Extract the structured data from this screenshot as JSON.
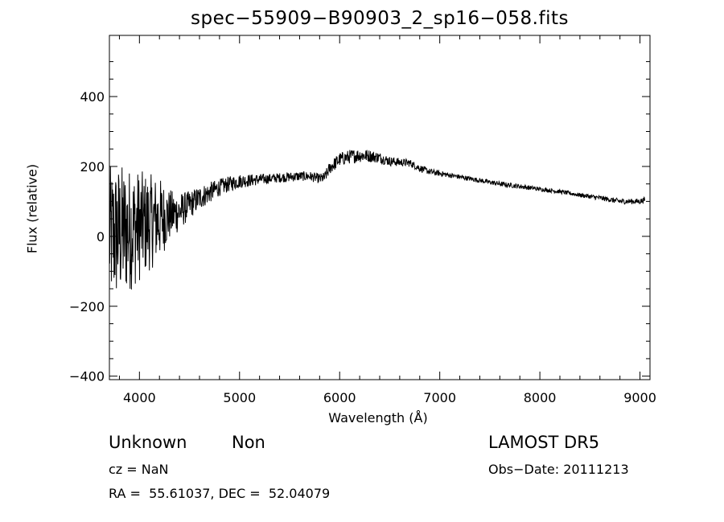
{
  "chart_data": {
    "type": "line",
    "title": "spec−55909−B90903_2_sp16−058.fits",
    "xlabel": "Wavelength (Å)",
    "ylabel": "Flux (relative)",
    "xlim": [
      3700,
      9100
    ],
    "ylim": [
      -410,
      575
    ],
    "x_ticks": [
      4000,
      5000,
      6000,
      7000,
      8000,
      9000
    ],
    "x_tick_labels": [
      "4000",
      "5000",
      "6000",
      "7000",
      "8000",
      "9000"
    ],
    "y_ticks": [
      400,
      200,
      0,
      -200,
      -400
    ],
    "y_tick_labels": [
      "400",
      "200",
      "0",
      "−200",
      "−400"
    ],
    "grid": false,
    "series": [
      {
        "line_color": "#000000",
        "x": [
          3700,
          3800,
          3900,
          4000,
          4100,
          4200,
          4300,
          4400,
          4500,
          4600,
          4700,
          4800,
          4900,
          5000,
          5100,
          5200,
          5300,
          5400,
          5500,
          5600,
          5700,
          5800,
          5850,
          5900,
          6000,
          6100,
          6200,
          6300,
          6400,
          6500,
          6600,
          6700,
          6800,
          6900,
          7000,
          7200,
          7400,
          7600,
          7800,
          8000,
          8200,
          8400,
          8600,
          8800,
          9000,
          9050
        ],
        "y": [
          0,
          10,
          20,
          30,
          40,
          50,
          60,
          70,
          90,
          110,
          125,
          140,
          150,
          158,
          160,
          163,
          165,
          168,
          170,
          172,
          172,
          165,
          168,
          195,
          220,
          228,
          232,
          230,
          225,
          215,
          212,
          210,
          195,
          185,
          180,
          170,
          160,
          150,
          143,
          135,
          128,
          118,
          110,
          100,
          100,
          105
        ],
        "noise": [
          200,
          200,
          180,
          160,
          140,
          120,
          75,
          55,
          40,
          35,
          30,
          25,
          22,
          20,
          18,
          16,
          14,
          14,
          14,
          14,
          14,
          14,
          16,
          18,
          20,
          20,
          20,
          18,
          16,
          14,
          12,
          11,
          10,
          9,
          8,
          7,
          7,
          7,
          7,
          6,
          6,
          6,
          7,
          8,
          8,
          8
        ]
      }
    ]
  },
  "annotations": {
    "class_label": "Unknown",
    "subclass_label": "Non",
    "cz": "cz = NaN",
    "coords": "RA =  55.61037, DEC =  52.04079",
    "survey": "LAMOST DR5",
    "obs_date": "Obs−Date: 20111213"
  }
}
